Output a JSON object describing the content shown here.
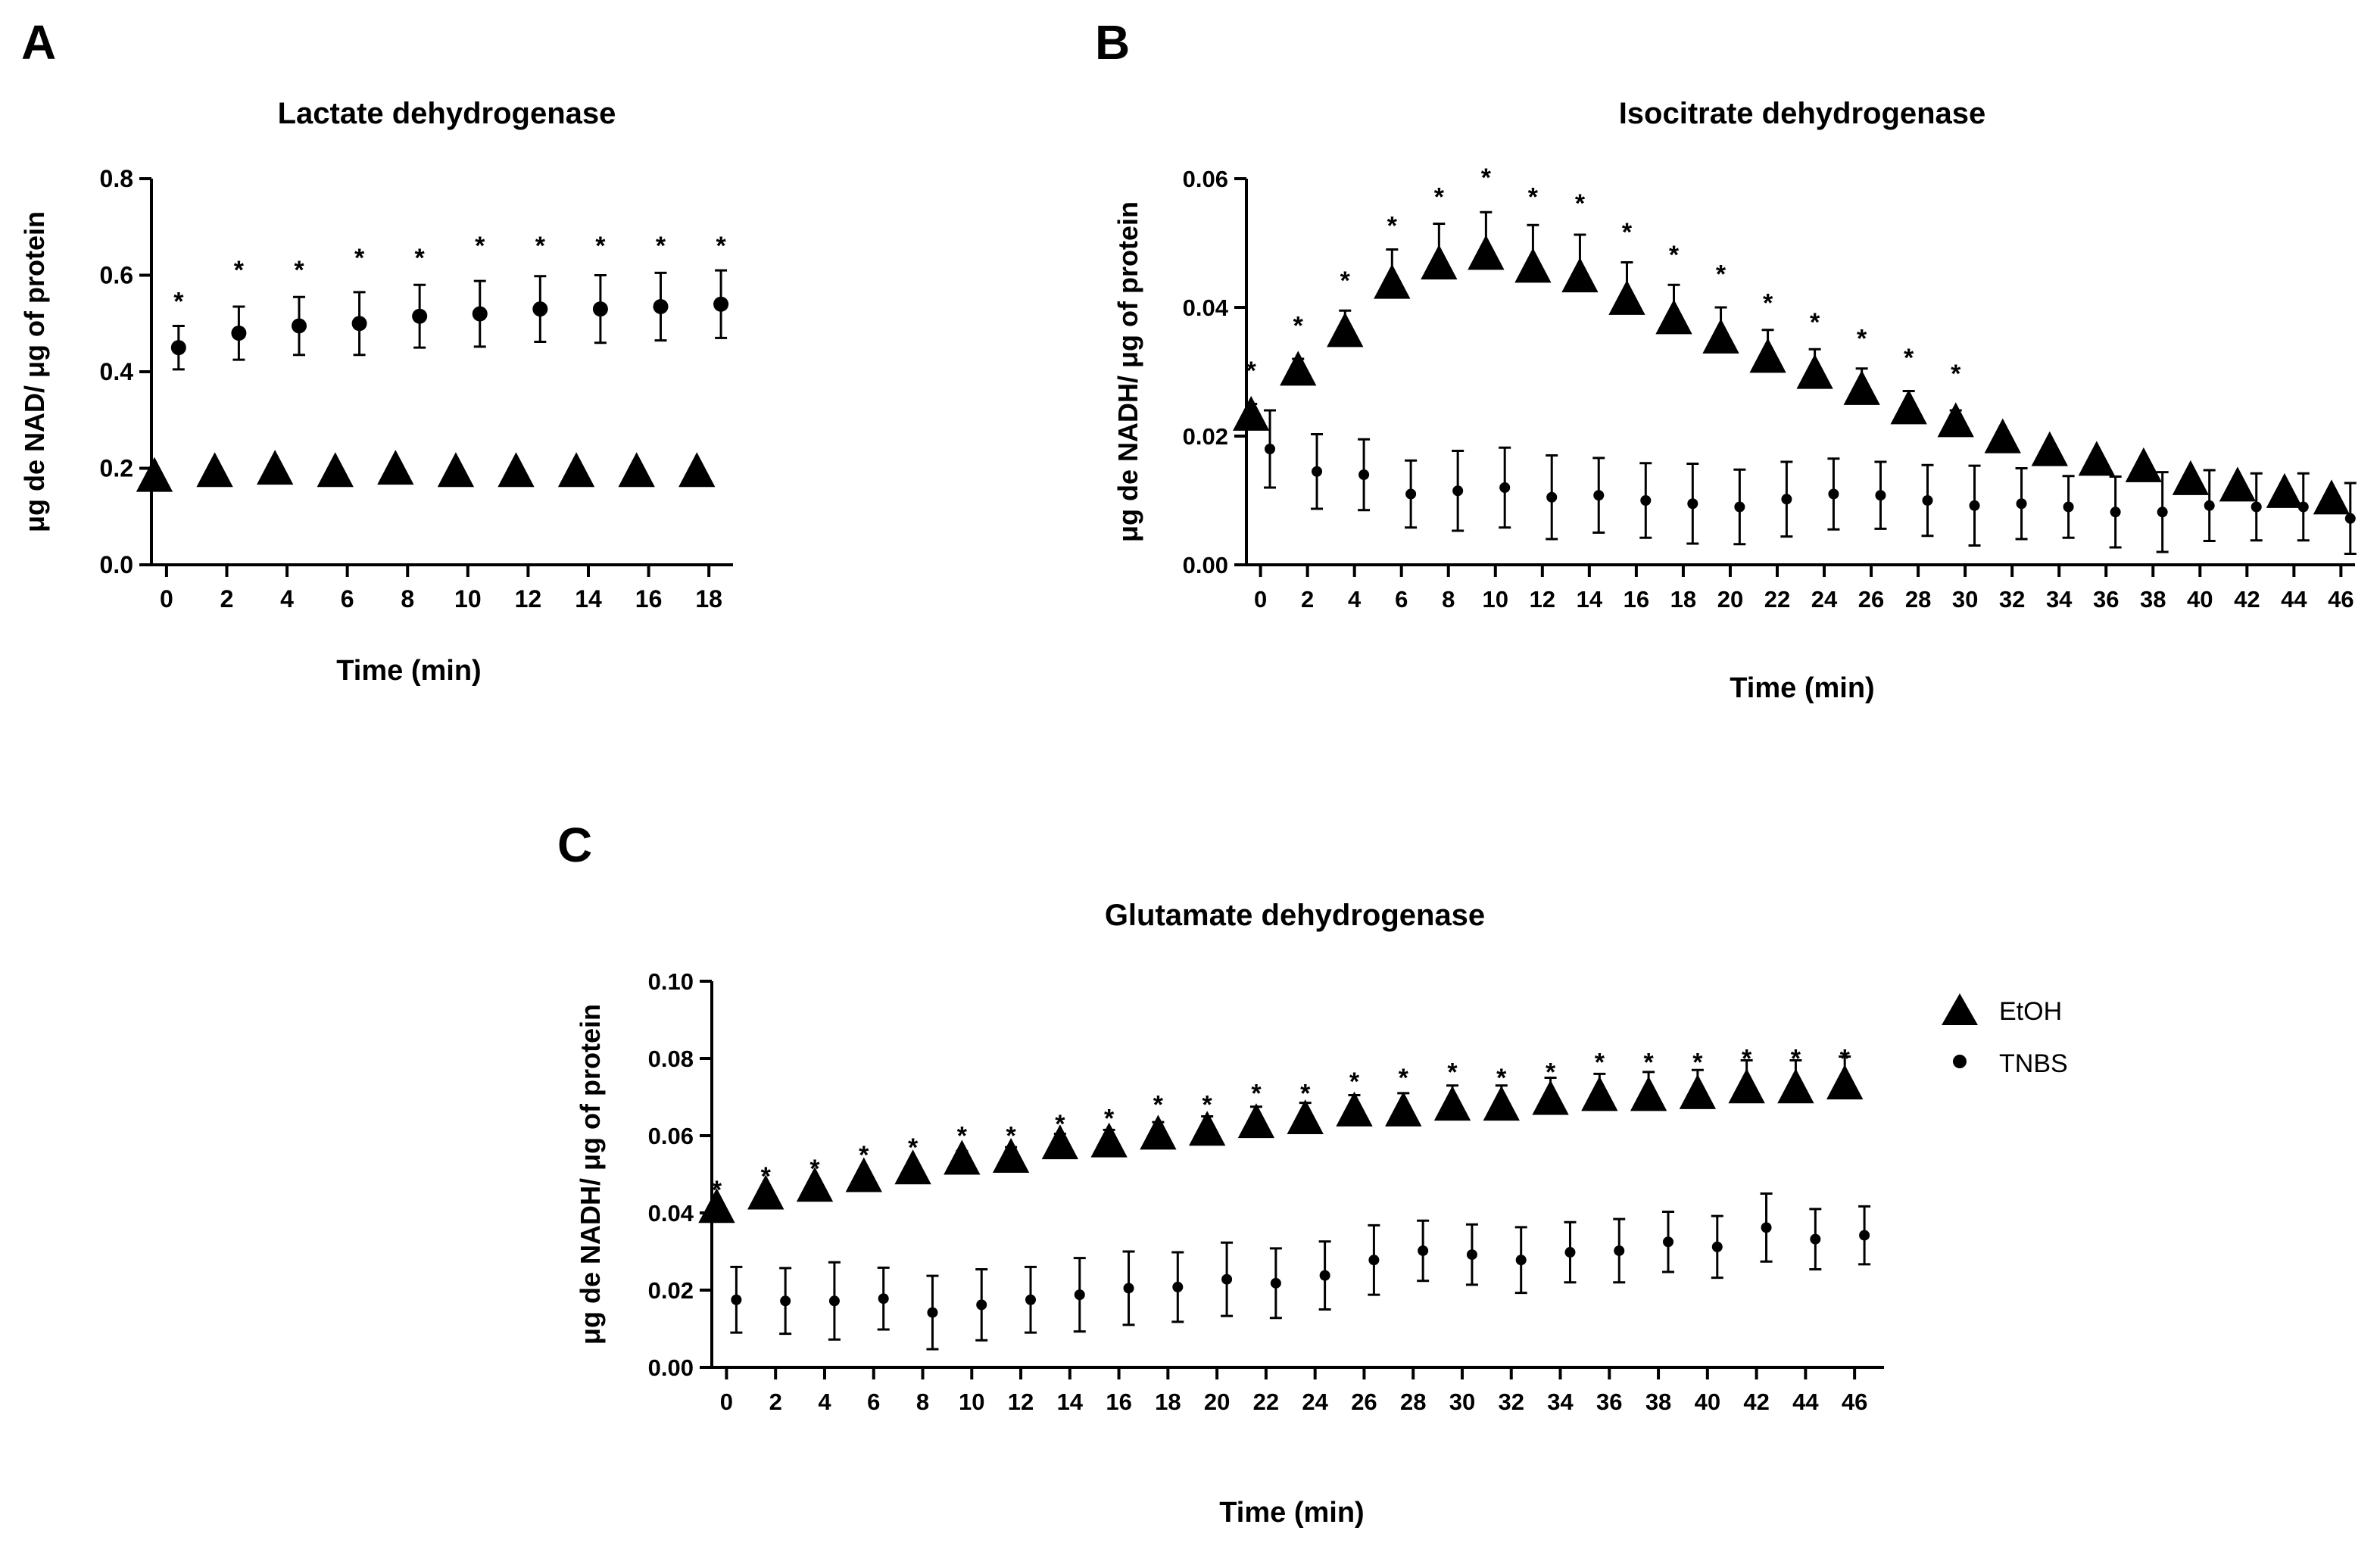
{
  "colors": {
    "ink": "#000000",
    "background": "#ffffff"
  },
  "legend": {
    "entries": [
      {
        "label": "EtOH",
        "marker": "triangle"
      },
      {
        "label": "TNBS",
        "marker": "dot"
      }
    ]
  },
  "chart_data": [
    {
      "panel": "A",
      "type": "scatter",
      "title": "Lactate dehydrogenase",
      "xlabel": "Time (min)",
      "ylabel": "μg de NAD/ μg of protein",
      "xlim": [
        -0.5,
        18.8
      ],
      "ylim": [
        0,
        0.8
      ],
      "xticks": [
        0,
        2,
        4,
        6,
        8,
        10,
        12,
        14,
        16,
        18
      ],
      "xtick_labels": [
        "0",
        "2",
        "4",
        "6",
        "8",
        "10",
        "12",
        "14",
        "16",
        "18"
      ],
      "yticks": [
        0,
        0.2,
        0.4,
        0.6,
        0.8
      ],
      "ytick_labels": [
        "0.0",
        "0.2",
        "0.4",
        "0.6",
        "0.8"
      ],
      "series": [
        {
          "name": "EtOH",
          "marker": "triangle",
          "x": [
            -0.4,
            1.6,
            3.6,
            5.6,
            7.6,
            9.6,
            11.6,
            13.6,
            15.6,
            17.6
          ],
          "y": [
            0.18,
            0.19,
            0.195,
            0.19,
            0.195,
            0.19,
            0.19,
            0.19,
            0.19,
            0.19
          ],
          "err": [
            0,
            0,
            0,
            0,
            0,
            0,
            0,
            0,
            0,
            0
          ]
        },
        {
          "name": "TNBS",
          "marker": "dot",
          "x": [
            0.4,
            2.4,
            4.4,
            6.4,
            8.4,
            10.4,
            12.4,
            14.4,
            16.4,
            18.4
          ],
          "y": [
            0.45,
            0.48,
            0.495,
            0.5,
            0.515,
            0.52,
            0.53,
            0.53,
            0.535,
            0.54
          ],
          "err": [
            0.045,
            0.055,
            0.06,
            0.065,
            0.065,
            0.068,
            0.068,
            0.07,
            0.07,
            0.07
          ]
        }
      ],
      "significance": {
        "symbol": "*",
        "x": [
          0.4,
          2.4,
          4.4,
          6.4,
          8.4,
          10.4,
          12.4,
          14.4,
          16.4,
          18.4
        ],
        "y": [
          0.55,
          0.615,
          0.615,
          0.64,
          0.64,
          0.665,
          0.665,
          0.665,
          0.665,
          0.665
        ]
      }
    },
    {
      "panel": "B",
      "type": "scatter",
      "title": "Isocitrate dehydrogenase",
      "xlabel": "Time (min)",
      "ylabel": "μg de NADH/ μg of protein",
      "xlim": [
        -0.6,
        46.6
      ],
      "ylim": [
        0,
        0.06
      ],
      "xticks": [
        0,
        2,
        4,
        6,
        8,
        10,
        12,
        14,
        16,
        18,
        20,
        22,
        24,
        26,
        28,
        30,
        32,
        34,
        36,
        38,
        40,
        42,
        44,
        46
      ],
      "xtick_labels": [
        "0",
        "2",
        "4",
        "6",
        "8",
        "10",
        "12",
        "14",
        "16",
        "18",
        "20",
        "22",
        "24",
        "26",
        "28",
        "30",
        "32",
        "34",
        "36",
        "38",
        "40",
        "42",
        "44",
        "46"
      ],
      "yticks": [
        0,
        0.02,
        0.04,
        0.06
      ],
      "ytick_labels": [
        "0.00",
        "0.02",
        "0.04",
        "0.06"
      ],
      "series": [
        {
          "name": "EtOH",
          "marker": "triangle",
          "x": [
            -0.4,
            1.6,
            3.6,
            5.6,
            7.6,
            9.6,
            11.6,
            13.6,
            15.6,
            17.6,
            19.6,
            21.6,
            23.6,
            25.6,
            27.6,
            29.6,
            31.6,
            33.6,
            35.6,
            37.6,
            39.6,
            41.6,
            43.6,
            45.6
          ],
          "y": [
            0.023,
            0.03,
            0.036,
            0.0435,
            0.0465,
            0.048,
            0.046,
            0.0445,
            0.041,
            0.038,
            0.035,
            0.032,
            0.0295,
            0.027,
            0.024,
            0.022,
            0.0195,
            0.0175,
            0.016,
            0.015,
            0.013,
            0.012,
            0.011,
            0.01
          ],
          "err": [
            0.002,
            0.002,
            0.0035,
            0.0055,
            0.0065,
            0.0068,
            0.0068,
            0.0068,
            0.006,
            0.0055,
            0.005,
            0.0045,
            0.004,
            0.0035,
            0.003,
            0.002,
            0.001,
            0.001,
            0.001,
            0.001,
            0.001,
            0.001,
            0.001,
            0.001
          ]
        },
        {
          "name": "TNBS",
          "marker": "dot",
          "x": [
            0.4,
            2.4,
            4.4,
            6.4,
            8.4,
            10.4,
            12.4,
            14.4,
            16.4,
            18.4,
            20.4,
            22.4,
            24.4,
            26.4,
            28.4,
            30.4,
            32.4,
            34.4,
            36.4,
            38.4,
            40.4,
            42.4,
            44.4,
            46.4
          ],
          "y": [
            0.018,
            0.0145,
            0.014,
            0.011,
            0.0115,
            0.012,
            0.0105,
            0.0108,
            0.01,
            0.0095,
            0.009,
            0.0102,
            0.011,
            0.0108,
            0.01,
            0.0092,
            0.0095,
            0.009,
            0.0082,
            0.0082,
            0.0092,
            0.009,
            0.009,
            0.0072
          ],
          "err": [
            0.006,
            0.0058,
            0.0055,
            0.0052,
            0.0062,
            0.0062,
            0.0065,
            0.0058,
            0.0058,
            0.0062,
            0.0058,
            0.0058,
            0.0055,
            0.0052,
            0.0055,
            0.0062,
            0.0055,
            0.0048,
            0.0055,
            0.0062,
            0.0055,
            0.0052,
            0.0052,
            0.0055
          ]
        }
      ],
      "significance": {
        "symbol": "*",
        "x": [
          -0.4,
          1.6,
          3.6,
          5.6,
          7.6,
          9.6,
          11.6,
          13.6,
          15.6,
          17.6,
          19.6,
          21.6,
          23.6,
          25.6,
          27.6,
          29.6
        ],
        "y": [
          0.0305,
          0.0375,
          0.0445,
          0.053,
          0.0575,
          0.0605,
          0.0575,
          0.0565,
          0.052,
          0.0485,
          0.0455,
          0.041,
          0.038,
          0.0355,
          0.0325,
          0.03
        ]
      }
    },
    {
      "panel": "C",
      "type": "scatter",
      "title": "Glutamate dehydrogenase",
      "xlabel": "Time (min)",
      "ylabel": "μg de NADH/ μg of protein",
      "xlim": [
        -0.6,
        47.2
      ],
      "ylim": [
        0,
        0.1
      ],
      "xticks": [
        0,
        2,
        4,
        6,
        8,
        10,
        12,
        14,
        16,
        18,
        20,
        22,
        24,
        26,
        28,
        30,
        32,
        34,
        36,
        38,
        40,
        42,
        44,
        46
      ],
      "xtick_labels": [
        "0",
        "2",
        "4",
        "6",
        "8",
        "10",
        "12",
        "14",
        "16",
        "18",
        "20",
        "22",
        "24",
        "26",
        "28",
        "30",
        "32",
        "34",
        "36",
        "38",
        "40",
        "42",
        "44",
        "46"
      ],
      "yticks": [
        0,
        0.02,
        0.04,
        0.06,
        0.08,
        0.1
      ],
      "ytick_labels": [
        "0.00",
        "0.02",
        "0.04",
        "0.06",
        "0.08",
        "0.10"
      ],
      "series": [
        {
          "name": "EtOH",
          "marker": "triangle",
          "x": [
            -0.4,
            1.6,
            3.6,
            5.6,
            7.6,
            9.6,
            11.6,
            13.6,
            15.6,
            17.6,
            19.6,
            21.6,
            23.6,
            25.6,
            27.6,
            29.6,
            31.6,
            33.6,
            35.6,
            37.6,
            39.6,
            41.6,
            43.6,
            45.6
          ],
          "y": [
            0.041,
            0.0445,
            0.0465,
            0.049,
            0.051,
            0.0535,
            0.054,
            0.0575,
            0.058,
            0.06,
            0.061,
            0.063,
            0.064,
            0.066,
            0.066,
            0.0675,
            0.0675,
            0.069,
            0.07,
            0.07,
            0.0705,
            0.072,
            0.072,
            0.073
          ],
          "err": [
            0.001,
            0.001,
            0.001,
            0.0015,
            0.002,
            0.0025,
            0.003,
            0.003,
            0.0035,
            0.0035,
            0.004,
            0.0045,
            0.0045,
            0.0045,
            0.005,
            0.0055,
            0.0055,
            0.006,
            0.006,
            0.0065,
            0.0065,
            0.0075,
            0.0075,
            0.0075
          ]
        },
        {
          "name": "TNBS",
          "marker": "dot",
          "x": [
            0.4,
            2.4,
            4.4,
            6.4,
            8.4,
            10.4,
            12.4,
            14.4,
            16.4,
            18.4,
            20.4,
            22.4,
            24.4,
            26.4,
            28.4,
            30.4,
            32.4,
            34.4,
            36.4,
            38.4,
            40.4,
            42.4,
            44.4,
            46.4
          ],
          "y": [
            0.0175,
            0.0172,
            0.0172,
            0.0178,
            0.0142,
            0.0162,
            0.0175,
            0.0188,
            0.0205,
            0.0208,
            0.0228,
            0.0218,
            0.0238,
            0.0278,
            0.0302,
            0.0292,
            0.0278,
            0.0298,
            0.0302,
            0.0325,
            0.0312,
            0.0362,
            0.0332,
            0.0342
          ],
          "err": [
            0.0085,
            0.0085,
            0.01,
            0.008,
            0.0095,
            0.0092,
            0.0085,
            0.0095,
            0.0095,
            0.009,
            0.0095,
            0.009,
            0.0088,
            0.009,
            0.0078,
            0.0078,
            0.0085,
            0.0078,
            0.0082,
            0.0078,
            0.008,
            0.0088,
            0.0078,
            0.0075
          ]
        }
      ],
      "significance": {
        "symbol": "*",
        "x": [
          -0.4,
          1.6,
          3.6,
          5.6,
          7.6,
          9.6,
          11.6,
          13.6,
          15.6,
          17.6,
          19.6,
          21.6,
          23.6,
          25.6,
          27.6,
          29.6,
          31.6,
          33.6,
          35.6,
          37.6,
          39.6,
          41.6,
          43.6,
          45.6
        ],
        "y": [
          0.0465,
          0.05,
          0.052,
          0.0555,
          0.0575,
          0.0605,
          0.0605,
          0.0635,
          0.065,
          0.0685,
          0.0685,
          0.0715,
          0.0715,
          0.0745,
          0.0755,
          0.077,
          0.0755,
          0.077,
          0.0795,
          0.0795,
          0.0795,
          0.0805,
          0.0805,
          0.0805
        ]
      }
    }
  ]
}
